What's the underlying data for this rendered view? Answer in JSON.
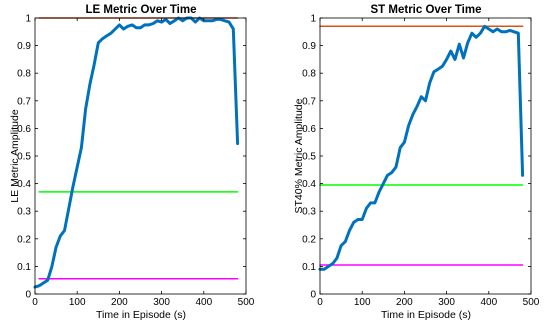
{
  "chart_data": [
    {
      "type": "line",
      "title": "LE Metric Over Time",
      "xlabel": "Time in Episode (s)",
      "ylabel": "LE Metric Amplitude",
      "xlim": [
        0,
        500
      ],
      "ylim": [
        0,
        1
      ],
      "xticks": [
        "0",
        "100",
        "200",
        "300",
        "400",
        "500"
      ],
      "yticks": [
        "0",
        "0.1",
        "0.2",
        "0.3",
        "0.4",
        "0.5",
        "0.6",
        "0.7",
        "0.8",
        "0.9",
        "1"
      ],
      "grid": false,
      "series": [
        {
          "color": "#0072BD",
          "x": [
            0,
            10,
            20,
            30,
            40,
            50,
            60,
            70,
            80,
            90,
            100,
            110,
            120,
            130,
            140,
            150,
            160,
            170,
            180,
            190,
            200,
            210,
            220,
            230,
            240,
            250,
            260,
            270,
            280,
            290,
            300,
            310,
            320,
            330,
            340,
            350,
            360,
            370,
            380,
            390,
            400,
            410,
            420,
            430,
            440,
            450,
            460,
            470,
            480
          ],
          "y": [
            0.025,
            0.03,
            0.04,
            0.05,
            0.1,
            0.17,
            0.21,
            0.23,
            0.31,
            0.39,
            0.46,
            0.53,
            0.67,
            0.76,
            0.83,
            0.91,
            0.925,
            0.935,
            0.945,
            0.96,
            0.975,
            0.96,
            0.97,
            0.975,
            0.965,
            0.965,
            0.975,
            0.975,
            0.98,
            0.99,
            0.985,
            0.995,
            0.98,
            0.99,
            1.0,
            0.99,
            1.0,
            1.0,
            0.985,
            1.0,
            0.99,
            0.99,
            0.99,
            0.995,
            0.995,
            0.99,
            0.985,
            0.96,
            0.545
          ]
        },
        {
          "color": "#D95319",
          "x": [
            10,
            480
          ],
          "y": [
            1.0,
            1.0
          ]
        },
        {
          "color": "#00FF00",
          "x": [
            10,
            480
          ],
          "y": [
            0.37,
            0.37
          ]
        },
        {
          "color": "#FF00FF",
          "x": [
            10,
            480
          ],
          "y": [
            0.055,
            0.055
          ]
        }
      ]
    },
    {
      "type": "line",
      "title": "ST Metric Over Time",
      "xlabel": "Time in Episode (s)",
      "ylabel": "ST40% Metric Amplitude",
      "xlim": [
        0,
        500
      ],
      "ylim": [
        0,
        1
      ],
      "xticks": [
        "0",
        "100",
        "200",
        "300",
        "400",
        "500"
      ],
      "yticks": [
        "0",
        "0.1",
        "0.2",
        "0.3",
        "0.4",
        "0.5",
        "0.6",
        "0.7",
        "0.8",
        "0.9",
        "1"
      ],
      "grid": false,
      "series": [
        {
          "color": "#0072BD",
          "x": [
            0,
            10,
            20,
            30,
            40,
            50,
            60,
            70,
            80,
            90,
            100,
            110,
            120,
            130,
            140,
            150,
            160,
            170,
            180,
            190,
            200,
            210,
            220,
            230,
            240,
            250,
            260,
            270,
            280,
            290,
            300,
            310,
            320,
            330,
            340,
            350,
            360,
            370,
            380,
            390,
            400,
            410,
            420,
            430,
            440,
            450,
            460,
            470,
            480
          ],
          "y": [
            0.09,
            0.09,
            0.1,
            0.11,
            0.13,
            0.175,
            0.19,
            0.23,
            0.26,
            0.27,
            0.27,
            0.31,
            0.33,
            0.33,
            0.37,
            0.4,
            0.43,
            0.44,
            0.46,
            0.53,
            0.55,
            0.61,
            0.65,
            0.68,
            0.715,
            0.7,
            0.765,
            0.805,
            0.815,
            0.825,
            0.85,
            0.88,
            0.85,
            0.905,
            0.855,
            0.91,
            0.945,
            0.93,
            0.945,
            0.97,
            0.96,
            0.95,
            0.96,
            0.95,
            0.95,
            0.955,
            0.95,
            0.945,
            0.43
          ]
        },
        {
          "color": "#D95319",
          "x": [
            0,
            480
          ],
          "y": [
            0.97,
            0.97
          ]
        },
        {
          "color": "#00FF00",
          "x": [
            0,
            480
          ],
          "y": [
            0.395,
            0.395
          ]
        },
        {
          "color": "#FF00FF",
          "x": [
            0,
            480
          ],
          "y": [
            0.105,
            0.105
          ]
        }
      ]
    }
  ]
}
